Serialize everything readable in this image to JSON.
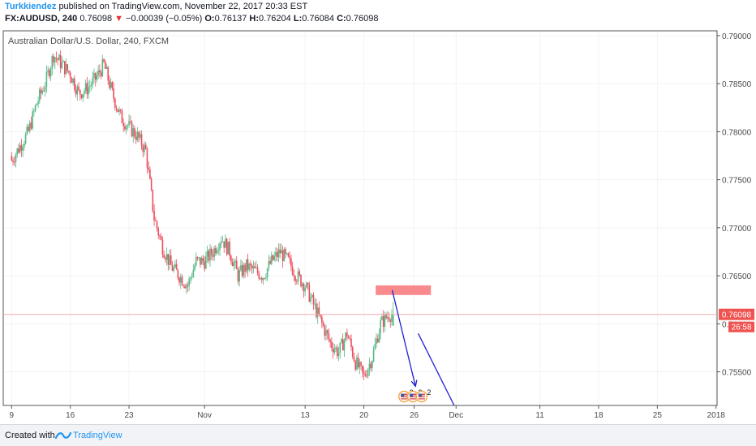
{
  "header": {
    "author": "Turkkiendez",
    "published_text": "published on TradingView.com, November 22, 2017 20:33 EST",
    "symbol_interval": "FX:AUDUSD, 240",
    "last_price": "0.76098",
    "change_arrow": "▼",
    "change": "−0.00039 (−0.05%)",
    "o_label": "O:",
    "o_value": "0.76137",
    "h_label": "H:",
    "h_value": "0.76204",
    "l_label": "L:",
    "l_value": "0.76084",
    "c_label": "C:",
    "c_value": "0.76098"
  },
  "footer": {
    "created_with": "Created with",
    "brand": "TradingView"
  },
  "colors": {
    "up": "#53b987",
    "down": "#eb4d5c",
    "box": "#f77c80",
    "arrow": "#1f1fcf",
    "price_label": "#ef5350"
  },
  "chart_data": {
    "type": "candlestick",
    "title": "Australian Dollar/U.S. Dollar, 240, FXCM",
    "ylim": [
      0.7515,
      0.7905
    ],
    "y_ticks": [
      0.755,
      0.76,
      0.765,
      0.77,
      0.775,
      0.78,
      0.785,
      0.79
    ],
    "y_tick_labels": [
      "0.75500",
      "0.76000",
      "0.76500",
      "0.77000",
      "0.77500",
      "0.78000",
      "0.78500",
      "0.79000"
    ],
    "x_ticks": [
      {
        "label": "9",
        "date": "2017-10-09"
      },
      {
        "label": "16",
        "date": "2017-10-16"
      },
      {
        "label": "23",
        "date": "2017-10-23"
      },
      {
        "label": "Nov",
        "date": "2017-11-01"
      },
      {
        "label": "13",
        "date": "2017-11-13"
      },
      {
        "label": "20",
        "date": "2017-11-20"
      },
      {
        "label": "26",
        "date": "2017-11-26"
      },
      {
        "label": "Dec",
        "date": "2017-12-01"
      },
      {
        "label": "11",
        "date": "2017-12-11"
      },
      {
        "label": "18",
        "date": "2017-12-18"
      },
      {
        "label": "25",
        "date": "2017-12-25"
      },
      {
        "label": "2018",
        "date": "2018-01-01"
      }
    ],
    "close_path": [
      [
        "2017-10-09",
        0.777
      ],
      [
        "2017-10-10",
        0.7785
      ],
      [
        "2017-10-11",
        0.78
      ],
      [
        "2017-10-12",
        0.783
      ],
      [
        "2017-10-13",
        0.785
      ],
      [
        "2017-10-14",
        0.788
      ],
      [
        "2017-10-16",
        0.786
      ],
      [
        "2017-10-17",
        0.784
      ],
      [
        "2017-10-18",
        0.7845
      ],
      [
        "2017-10-19",
        0.7855
      ],
      [
        "2017-10-20",
        0.787
      ],
      [
        "2017-10-21",
        0.784
      ],
      [
        "2017-10-22",
        0.7815
      ],
      [
        "2017-10-23",
        0.7805
      ],
      [
        "2017-10-24",
        0.7795
      ],
      [
        "2017-10-25",
        0.778
      ],
      [
        "2017-10-26",
        0.771
      ],
      [
        "2017-10-27",
        0.768
      ],
      [
        "2017-10-28",
        0.766
      ],
      [
        "2017-10-30",
        0.764
      ],
      [
        "2017-10-31",
        0.7665
      ],
      [
        "2017-11-01",
        0.7665
      ],
      [
        "2017-11-02",
        0.7675
      ],
      [
        "2017-11-03",
        0.769
      ],
      [
        "2017-11-04",
        0.7675
      ],
      [
        "2017-11-05",
        0.765
      ],
      [
        "2017-11-06",
        0.766
      ],
      [
        "2017-11-07",
        0.7655
      ],
      [
        "2017-11-08",
        0.765
      ],
      [
        "2017-11-09",
        0.7665
      ],
      [
        "2017-11-10",
        0.7675
      ],
      [
        "2017-11-11",
        0.7665
      ],
      [
        "2017-11-12",
        0.765
      ],
      [
        "2017-11-13",
        0.764
      ],
      [
        "2017-11-14",
        0.762
      ],
      [
        "2017-11-15",
        0.76
      ],
      [
        "2017-11-16",
        0.758
      ],
      [
        "2017-11-17",
        0.757
      ],
      [
        "2017-11-18",
        0.759
      ],
      [
        "2017-11-19",
        0.756
      ],
      [
        "2017-11-20",
        0.7545
      ],
      [
        "2017-11-21",
        0.7565
      ],
      [
        "2017-11-22",
        0.76
      ],
      [
        "2017-11-23",
        0.76098
      ]
    ],
    "last_price_label": "0.76098",
    "countdown_label": "26:58",
    "annotations": {
      "resistance_box": {
        "x0": "2017-11-22",
        "x1": "2017-11-28",
        "y0": 0.763,
        "y1": 0.764
      },
      "arrow1": {
        "from": [
          "2017-11-23",
          0.7635
        ],
        "to": [
          "2017-11-25",
          0.7535
        ]
      },
      "line2": {
        "from": [
          "2017-11-26",
          0.759
        ],
        "to": [
          "2017-11-30",
          0.7515
        ]
      },
      "event_markers": [
        {
          "date": "2017-11-25",
          "count": "2"
        },
        {
          "date": "2017-11-26",
          "count": "2"
        },
        {
          "date": "2017-11-27",
          "count": "2"
        }
      ]
    }
  }
}
